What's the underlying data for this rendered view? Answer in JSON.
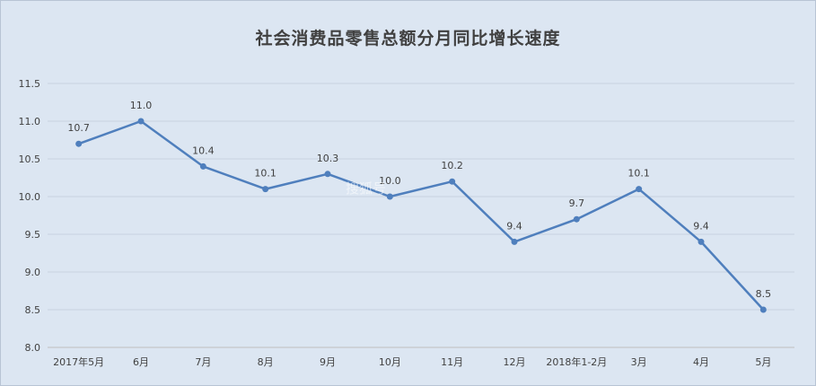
{
  "chart_data": {
    "type": "line",
    "title": "社会消费品零售总额分月同比增长速度",
    "categories": [
      "2017年5月",
      "6月",
      "7月",
      "8月",
      "9月",
      "10月",
      "11月",
      "12月",
      "2018年1-2月",
      "3月",
      "4月",
      "5月"
    ],
    "series": [
      {
        "values": [
          10.7,
          11.0,
          10.4,
          10.1,
          10.3,
          10.0,
          10.2,
          9.4,
          9.7,
          10.1,
          9.4,
          8.5
        ]
      }
    ],
    "data_labels": [
      "10.7",
      "11.0",
      "10.4",
      "10.1",
      "10.3",
      "10.0",
      "10.2",
      "9.4",
      "9.7",
      "10.1",
      "9.4",
      "8.5"
    ],
    "yticks": [
      "8.0",
      "8.5",
      "9.0",
      "9.5",
      "10.0",
      "10.5",
      "11.0",
      "11.5"
    ],
    "ylim": [
      8.0,
      11.5
    ],
    "grid": true,
    "legend": "none",
    "line_color": "#4f7fbd",
    "background_color": "#dce6f2",
    "grid_color": "#c9d3e0"
  },
  "watermark": "搜狐号"
}
